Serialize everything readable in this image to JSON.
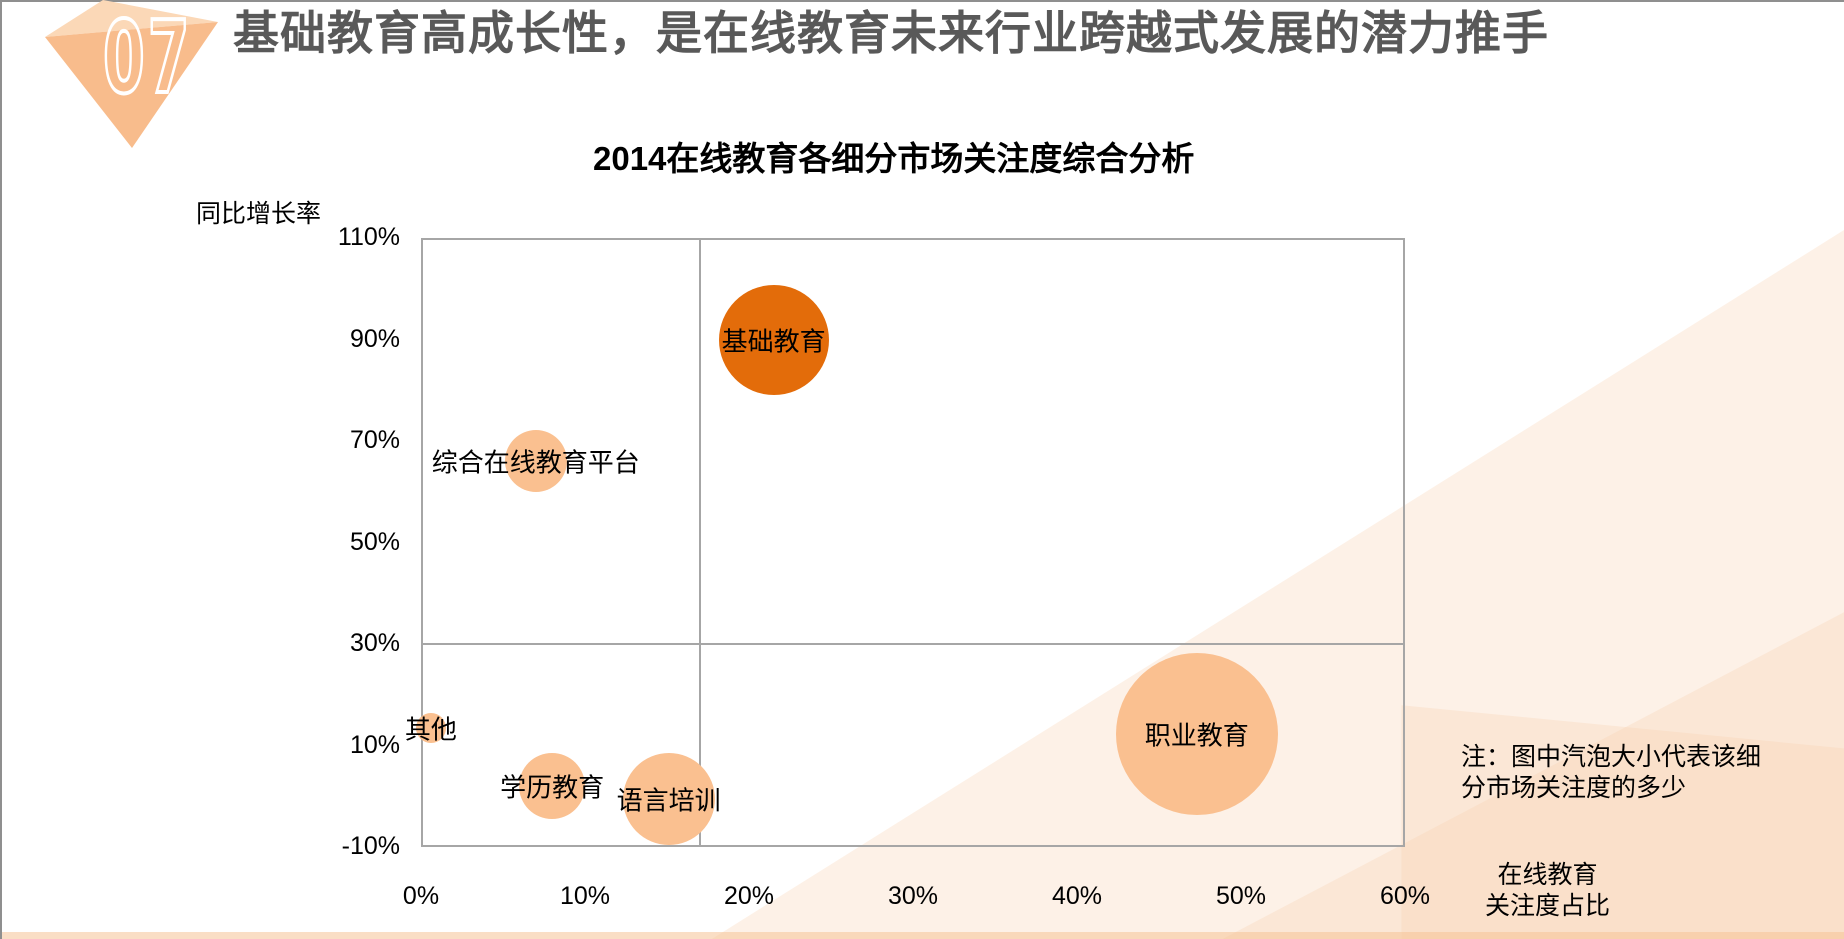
{
  "slide": {
    "number": "07",
    "title": "基础教育高成长性，是在线教育未来行业跨越式发展的潜力推手"
  },
  "colors": {
    "accent_dark_orange": "#E36C0A",
    "accent_light_orange": "#FAC090",
    "triangle_main": "#F8BC8C",
    "triangle_facet": "#FBD8B7",
    "line_gray": "#A6A6A6",
    "title_gray": "#595959"
  },
  "chart_data": {
    "type": "scatter",
    "title": "2014在线教育各细分市场关注度综合分析",
    "xlabel": "在线教育关注度占比",
    "xlabel_lines": [
      "在线教育",
      "关注度占比"
    ],
    "ylabel": "同比增长率",
    "xlim": [
      0,
      60
    ],
    "ylim": [
      -10,
      110
    ],
    "x_ticks": [
      0,
      10,
      20,
      30,
      40,
      50,
      60
    ],
    "y_ticks": [
      110,
      90,
      70,
      50,
      30,
      10,
      -10
    ],
    "tick_suffix": "%",
    "grid": false,
    "quadrant_dividers": {
      "x": 17,
      "y": 30
    },
    "series": [
      {
        "name": "基础教育",
        "x": 21.5,
        "y": 90,
        "r": 55,
        "color": "#E36C0A"
      },
      {
        "name": "综合在线教育平台",
        "x": 7.0,
        "y": 66,
        "r": 31,
        "color": "#FAC090"
      },
      {
        "name": "其他",
        "x": 0.6,
        "y": 13.5,
        "r": 15,
        "color": "#FAC090"
      },
      {
        "name": "学历教育",
        "x": 8.0,
        "y": 2,
        "r": 33,
        "color": "#FAC090"
      },
      {
        "name": "语言培训",
        "x": 15.1,
        "y": -0.5,
        "r": 46,
        "color": "#FAC090"
      },
      {
        "name": "职业教育",
        "x": 47.3,
        "y": 12.3,
        "r": 81,
        "color": "#FAC090"
      }
    ],
    "note_lines": [
      "注：图中汽泡大小代表该细",
      "分市场关注度的多少"
    ],
    "note": "注：图中汽泡大小代表该细分市场关注度的多少"
  }
}
